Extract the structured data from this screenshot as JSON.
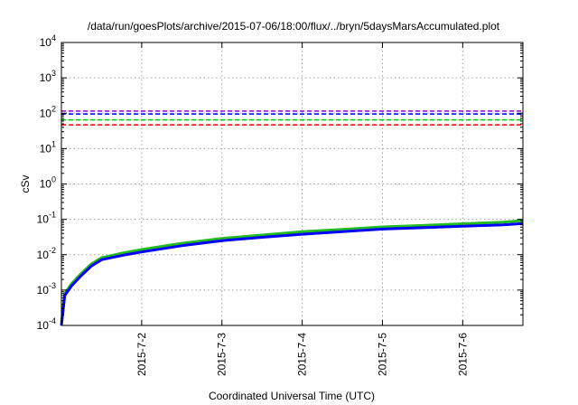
{
  "chart_data": {
    "type": "line",
    "title": "/data/run/goesPlots/archive/2015-07-06/18:00/flux/../bryn/5daysMarsAccumulated.plot",
    "xlabel": "Coordinated Universal Time (UTC)",
    "ylabel": "cSv",
    "x_scale": "time",
    "y_scale": "log",
    "xlim": [
      "2015-07-01 00:00",
      "2015-07-06 18:00"
    ],
    "ylim": [
      0.0001,
      10000
    ],
    "grid": true,
    "x_ticks": [
      {
        "t": "2015-07-02 00:00",
        "label": "2015-7-2"
      },
      {
        "t": "2015-07-03 00:00",
        "label": "2015-7-3"
      },
      {
        "t": "2015-07-04 00:00",
        "label": "2015-7-4"
      },
      {
        "t": "2015-07-05 00:00",
        "label": "2015-7-5"
      },
      {
        "t": "2015-07-06 00:00",
        "label": "2015-7-6"
      }
    ],
    "y_ticks": [
      {
        "v": 0.0001,
        "base": "10",
        "exp": "-4"
      },
      {
        "v": 0.001,
        "base": "10",
        "exp": "-3"
      },
      {
        "v": 0.01,
        "base": "10",
        "exp": "-2"
      },
      {
        "v": 0.1,
        "base": "10",
        "exp": "-1"
      },
      {
        "v": 1,
        "base": "10",
        "exp": "0"
      },
      {
        "v": 10,
        "base": "10",
        "exp": "1"
      },
      {
        "v": 100,
        "base": "10",
        "exp": "2"
      },
      {
        "v": 1000,
        "base": "10",
        "exp": "3"
      },
      {
        "v": 10000,
        "base": "10",
        "exp": "4"
      }
    ],
    "thresholds": [
      {
        "value": 115,
        "color": "#9400d3"
      },
      {
        "value": 95,
        "color": "#0000ff"
      },
      {
        "value": 65,
        "color": "#00cc00"
      },
      {
        "value": 47,
        "color": "#ff0000"
      }
    ],
    "series": [
      {
        "color": "#22bb22",
        "x": [
          "2015-07-01 00:00",
          "2015-07-01 01:00",
          "2015-07-01 03:00",
          "2015-07-01 06:00",
          "2015-07-01 09:00",
          "2015-07-01 12:00",
          "2015-07-01 18:00",
          "2015-07-02 00:00",
          "2015-07-02 12:00",
          "2015-07-03 00:00",
          "2015-07-03 12:00",
          "2015-07-04 00:00",
          "2015-07-04 12:00",
          "2015-07-05 00:00",
          "2015-07-05 12:00",
          "2015-07-06 00:00",
          "2015-07-06 12:00",
          "2015-07-06 18:00"
        ],
        "y": [
          0.00012,
          0.0008,
          0.0015,
          0.003,
          0.0055,
          0.0082,
          0.011,
          0.014,
          0.021,
          0.029,
          0.036,
          0.045,
          0.052,
          0.061,
          0.067,
          0.075,
          0.083,
          0.092
        ]
      },
      {
        "color": "#0000ff",
        "x": [
          "2015-07-01 00:00",
          "2015-07-01 01:00",
          "2015-07-01 03:00",
          "2015-07-01 06:00",
          "2015-07-01 09:00",
          "2015-07-01 12:00",
          "2015-07-01 18:00",
          "2015-07-02 00:00",
          "2015-07-02 12:00",
          "2015-07-03 00:00",
          "2015-07-03 12:00",
          "2015-07-04 00:00",
          "2015-07-04 12:00",
          "2015-07-05 00:00",
          "2015-07-05 12:00",
          "2015-07-06 00:00",
          "2015-07-06 12:00",
          "2015-07-06 18:00"
        ],
        "y": [
          0.0001,
          0.0007,
          0.0013,
          0.0026,
          0.0048,
          0.0072,
          0.0095,
          0.012,
          0.018,
          0.025,
          0.031,
          0.038,
          0.045,
          0.053,
          0.058,
          0.064,
          0.07,
          0.076
        ]
      }
    ]
  }
}
